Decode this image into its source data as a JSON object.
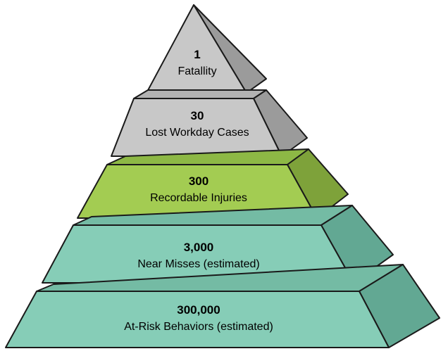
{
  "pyramid": {
    "tiers": [
      {
        "number": "1",
        "label": "Fatallity",
        "colors": {
          "front": "#c8c8c8",
          "side": "#9b9b9b",
          "top": "#b2b2b2"
        }
      },
      {
        "number": "30",
        "label": "Lost Workday Cases",
        "colors": {
          "front": "#c8c8c8",
          "side": "#9b9b9b",
          "top": "#b2b2b2"
        }
      },
      {
        "number": "300",
        "label": "Recordable Injuries",
        "colors": {
          "front": "#a3cc52",
          "side": "#7ea23a",
          "top": "#8db845"
        }
      },
      {
        "number": "3,000",
        "label": "Near Misses (estimated)",
        "colors": {
          "front": "#86cdb7",
          "side": "#62a893",
          "top": "#74bba4"
        }
      },
      {
        "number": "300,000",
        "label": "At-Risk Behaviors (estimated)",
        "colors": {
          "front": "#86cdb7",
          "side": "#62a893",
          "top": "#74bba4"
        }
      }
    ]
  }
}
